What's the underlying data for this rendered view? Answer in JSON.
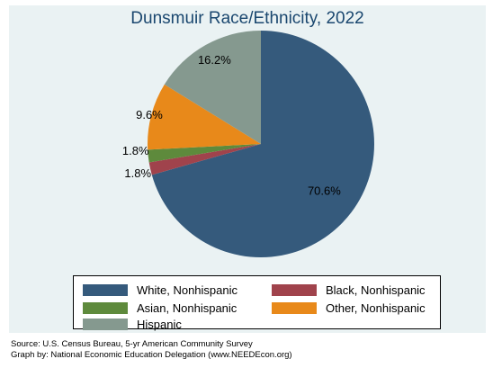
{
  "chart_data": {
    "type": "pie",
    "title": "Dunsmuir Race/Ethnicity, 2022",
    "slices": [
      {
        "name": "White, Nonhispanic",
        "value": 70.6,
        "label": "70.6%",
        "color": "#355a7c"
      },
      {
        "name": "Black, Nonhispanic",
        "value": 1.8,
        "label": "1.8%",
        "color": "#a0434c"
      },
      {
        "name": "Asian, Nonhispanic",
        "value": 1.8,
        "label": "1.8%",
        "color": "#5e8a3c"
      },
      {
        "name": "Other, Nonhispanic",
        "value": 9.6,
        "label": "9.6%",
        "color": "#e8891a"
      },
      {
        "name": "Hispanic",
        "value": 16.2,
        "label": "16.2%",
        "color": "#85998f"
      }
    ],
    "legend_placement": "bottom"
  },
  "legend": {
    "items": [
      {
        "label": "White, Nonhispanic",
        "color": "#355a7c"
      },
      {
        "label": "Black, Nonhispanic",
        "color": "#a0434c"
      },
      {
        "label": "Asian, Nonhispanic",
        "color": "#5e8a3c"
      },
      {
        "label": "Other, Nonhispanic",
        "color": "#e8891a"
      },
      {
        "label": "Hispanic",
        "color": "#85998f"
      }
    ]
  },
  "footer": {
    "source": "Source:  U.S. Census Bureau, 5-yr American Community Survey",
    "graph_by": "Graph by: National Economic Education Delegation (www.NEEDEcon.org)"
  }
}
